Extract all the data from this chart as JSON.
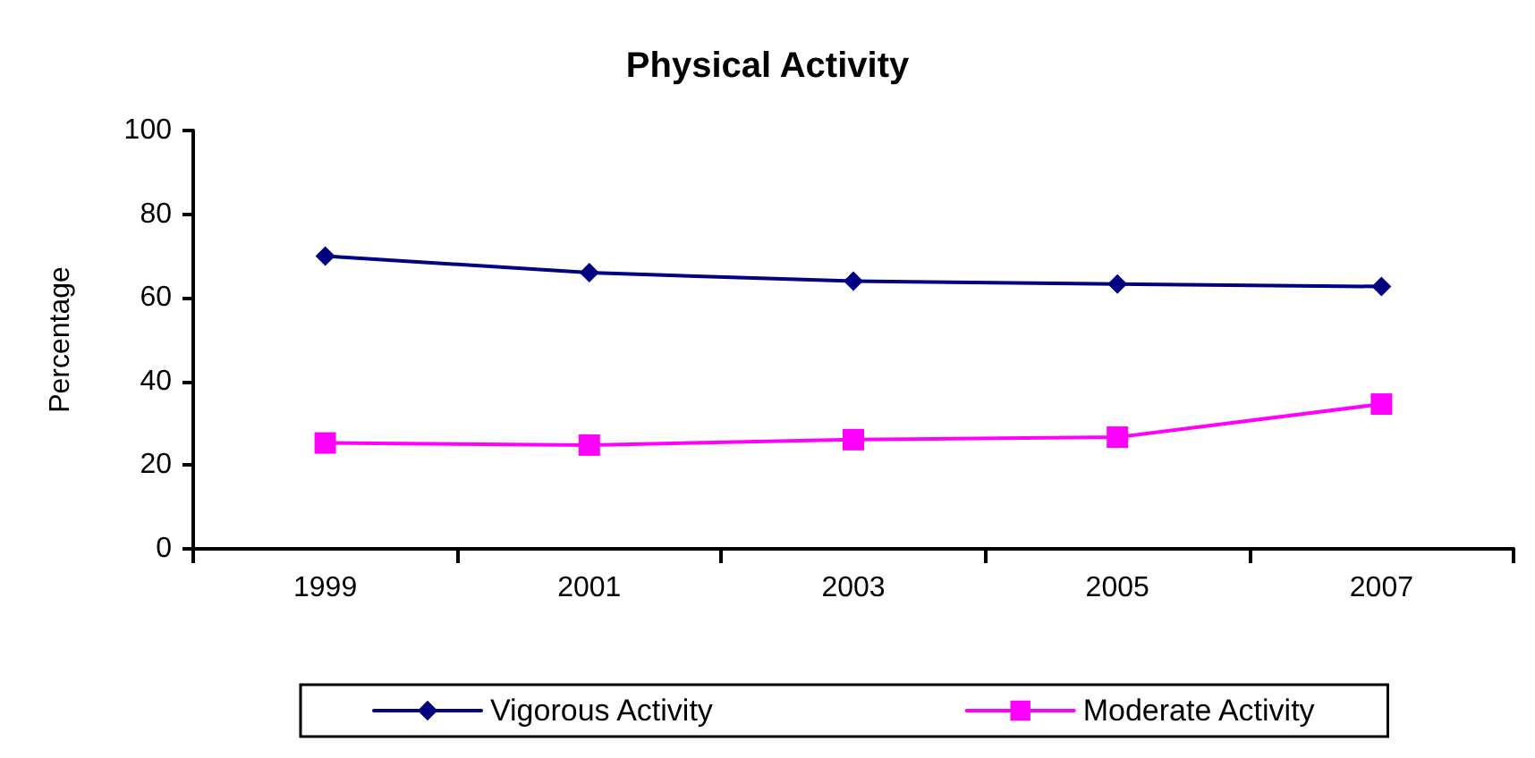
{
  "chart_data": {
    "type": "line",
    "title": "Physical Activity",
    "ylabel": "Percentage",
    "categories": [
      "1999",
      "2001",
      "2003",
      "2005",
      "2007"
    ],
    "series": [
      {
        "name": "Vigorous Activity",
        "color": "#000080",
        "marker": "diamond",
        "values": [
          70,
          66,
          64,
          63.3,
          62.7
        ]
      },
      {
        "name": "Moderate Activity",
        "color": "#ff00ff",
        "marker": "square",
        "values": [
          25.3,
          24.8,
          26.1,
          26.7,
          34.6
        ]
      }
    ],
    "ylim": [
      0,
      100
    ],
    "yticks": [
      0,
      20,
      40,
      60,
      80,
      100
    ],
    "grid": false,
    "legend": "bottom"
  }
}
